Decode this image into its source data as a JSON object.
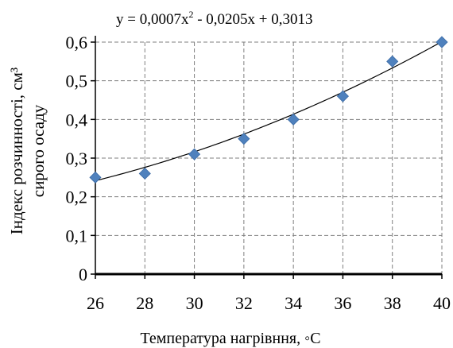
{
  "chart_data": {
    "type": "scatter",
    "title": "",
    "equation": {
      "prefix": "y = 0,0007x",
      "exponent": "2",
      "suffix": " - 0,0205x  + 0,3013"
    },
    "xlabel": "Температура нагрівння, ◦С",
    "ylabel_line1": "Індекс розчинності, см³",
    "ylabel_line2": "сирого осаду",
    "xlim": [
      26,
      40
    ],
    "ylim": [
      0,
      0.6
    ],
    "xticks": [
      "26",
      "28",
      "30",
      "32",
      "34",
      "36",
      "38",
      "40"
    ],
    "yticks": [
      "0",
      "0,1",
      "0,2",
      "0,3",
      "0,4",
      "0,5",
      "0,6"
    ],
    "grid": true,
    "marker_color": "#4F81BD",
    "series": [
      {
        "x": [
          26,
          28,
          30,
          32,
          34,
          36,
          38,
          40
        ],
        "y": [
          0.25,
          0.26,
          0.31,
          0.35,
          0.4,
          0.46,
          0.55,
          0.6
        ]
      }
    ],
    "trendline": {
      "type": "polynomial",
      "coefficients": [
        0.0007,
        -0.0205,
        0.3013
      ]
    }
  }
}
